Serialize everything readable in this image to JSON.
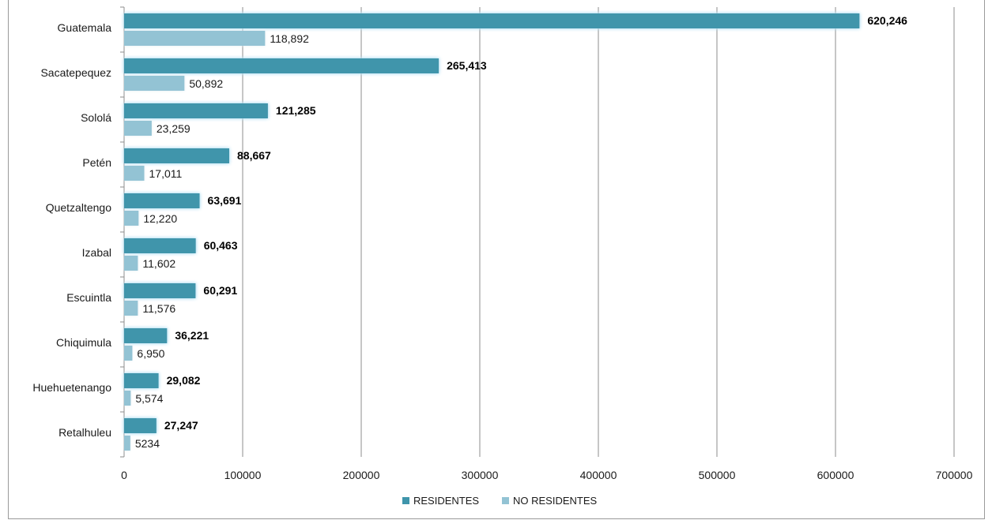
{
  "chart_data": {
    "type": "bar",
    "orientation": "horizontal",
    "categories": [
      "Guatemala",
      "Sacatepequez",
      "Sololá",
      "Petén",
      "Quetzaltengo",
      "Izabal",
      "Escuintla",
      "Chiquimula",
      "Huehuetenango",
      "Retalhuleu"
    ],
    "series": [
      {
        "name": "RESIDENTES",
        "color": "#3f95ab",
        "values": [
          620246,
          265413,
          121285,
          88667,
          63691,
          60463,
          60291,
          36221,
          29082,
          27247
        ],
        "labels": [
          "620,246",
          "265,413",
          "121,285",
          "88,667",
          "63,691",
          "60,463",
          "60,291",
          "36,221",
          "29,082",
          "27,247"
        ]
      },
      {
        "name": "NO RESIDENTES",
        "color": "#93c3d4",
        "values": [
          118892,
          50892,
          23259,
          17011,
          12220,
          11602,
          11576,
          6950,
          5574,
          5234
        ],
        "labels": [
          "118,892",
          "50,892",
          "23,259",
          "17,011",
          "12,220",
          "11,602",
          "11,576",
          "6,950",
          "5,574",
          "5234"
        ]
      }
    ],
    "xlim": [
      0,
      700000
    ],
    "xticks": [
      "0",
      "100000",
      "200000",
      "300000",
      "400000",
      "500000",
      "600000",
      "700000"
    ],
    "grid": "vertical",
    "legend_position": "bottom"
  }
}
